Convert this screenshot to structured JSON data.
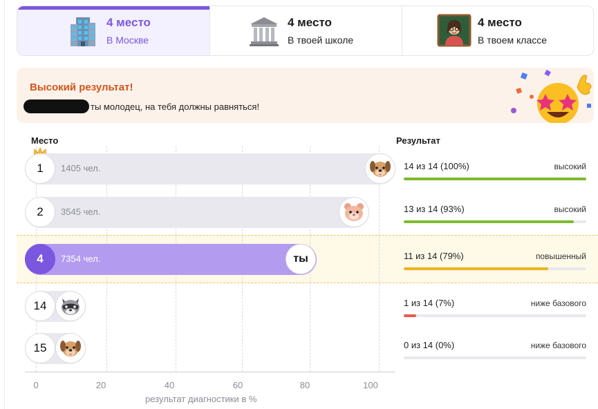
{
  "tabs": [
    {
      "title": "4 место",
      "subtitle": "В Москве",
      "icon": "city-building-icon",
      "active": true
    },
    {
      "title": "4 место",
      "subtitle": "В твоей школе",
      "icon": "school-building-icon",
      "active": false
    },
    {
      "title": "4 место",
      "subtitle": "В твоем классе",
      "icon": "teacher-icon",
      "active": false
    }
  ],
  "banner": {
    "title": "Высокий результат!",
    "text": "ты молодец, на тебя должны равняться!"
  },
  "headers": {
    "place": "Место",
    "result": "Результат"
  },
  "rows": [
    {
      "place": "1",
      "count": "1405 чел.",
      "percent": 100,
      "avatar": "dog-icon",
      "you": false,
      "result": "14 из 14 (100%)",
      "level": "высокий",
      "color": "#7dbb2c"
    },
    {
      "place": "2",
      "count": "3545 чел.",
      "percent": 93,
      "avatar": "hamster-icon",
      "you": false,
      "result": "13 из 14 (93%)",
      "level": "высокий",
      "color": "#7dbb2c"
    },
    {
      "place": "4",
      "count": "7354 чел.",
      "percent": 79,
      "avatar_text": "ты",
      "you": true,
      "result": "11 из 14 (79%)",
      "level": "повышенный",
      "color": "#f0b11d"
    },
    {
      "place": "14",
      "count": "",
      "percent": 7,
      "avatar": "raccoon-icon",
      "you": false,
      "result": "1 из 14 (7%)",
      "level": "ниже базового",
      "color": "#ec5a4f"
    },
    {
      "place": "15",
      "count": "",
      "percent": 0,
      "avatar": "dog-icon",
      "you": false,
      "result": "0 из 14 (0%)",
      "level": "ниже базового",
      "color": "#ec5a4f"
    }
  ],
  "axis": {
    "ticks": [
      "0",
      "20",
      "40",
      "60",
      "80",
      "100"
    ],
    "label": "результат диагностики в %"
  }
}
